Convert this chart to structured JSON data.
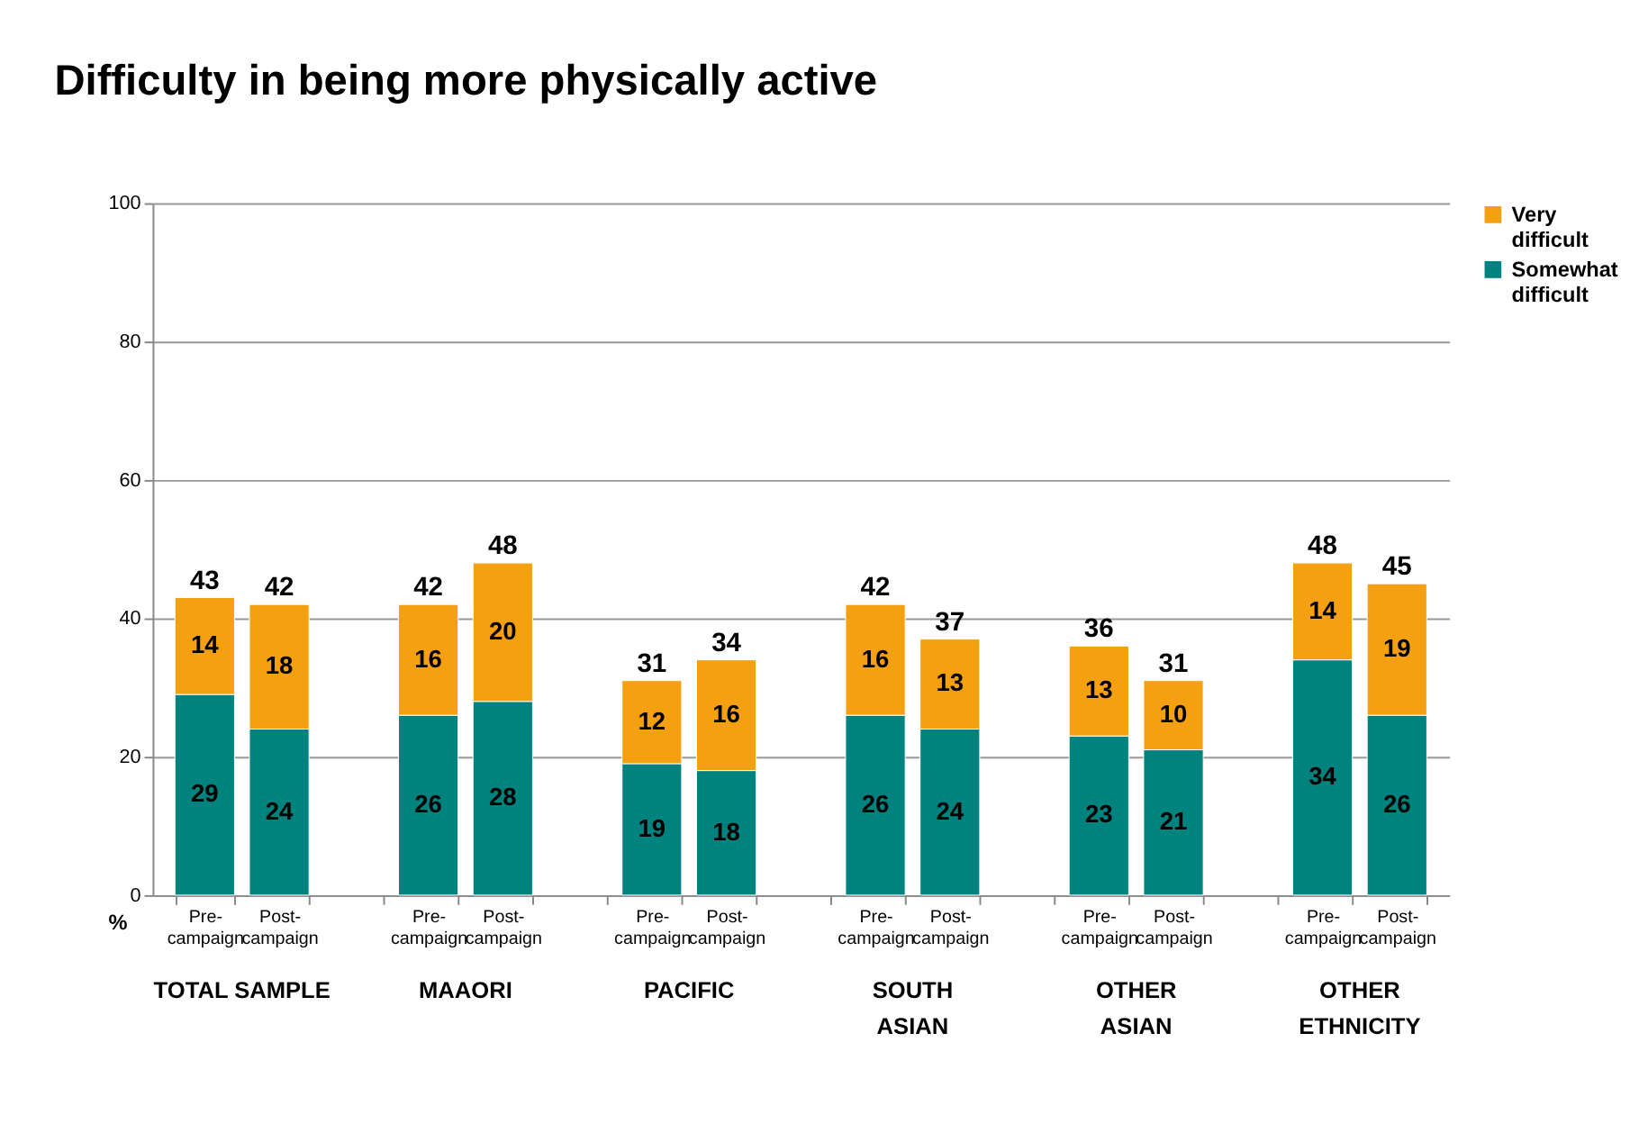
{
  "chart_data": {
    "type": "bar",
    "title": "Difficulty in being more physically active",
    "ylabel": "%",
    "categories": [
      "Pre-campaign",
      "Post-campaign",
      null,
      "Pre-campaign",
      "Post-campaign",
      null,
      "Pre-campaign",
      "Post-campaign",
      null,
      "Pre-campaign",
      "Post-campaign",
      null,
      "Pre-campaign",
      "Post-campaign",
      null,
      "Pre-campaign",
      "Post-campaign"
    ],
    "stacked": true,
    "series": [
      {
        "name": "Somewhat difficult",
        "color": "#00827f",
        "values": [
          29,
          24,
          null,
          26,
          28,
          null,
          19,
          18,
          null,
          26,
          24,
          null,
          23,
          21,
          null,
          34,
          26
        ]
      },
      {
        "name": "Very difficult",
        "color": "#f5a010",
        "values": [
          14,
          18,
          null,
          16,
          20,
          null,
          12,
          16,
          null,
          16,
          13,
          null,
          13,
          10,
          null,
          14,
          19
        ]
      }
    ],
    "totals": [
      "43",
      "42",
      null,
      "42",
      "48",
      null,
      "31",
      "34",
      null,
      "42",
      "37",
      null,
      "36",
      "31",
      null,
      "48",
      "45"
    ],
    "data_labels": true,
    "annotations": [
      "TOTAL SAMPLE",
      "MAAORI",
      "PACIFIC",
      "SOUTH\nASIAN",
      "OTHER\nASIAN",
      "OTHER\nETHNICITY"
    ],
    "ylim": [
      0,
      100
    ],
    "yticks": [
      0,
      20,
      40,
      60,
      80,
      100
    ],
    "grid": "y",
    "legend": "right"
  }
}
